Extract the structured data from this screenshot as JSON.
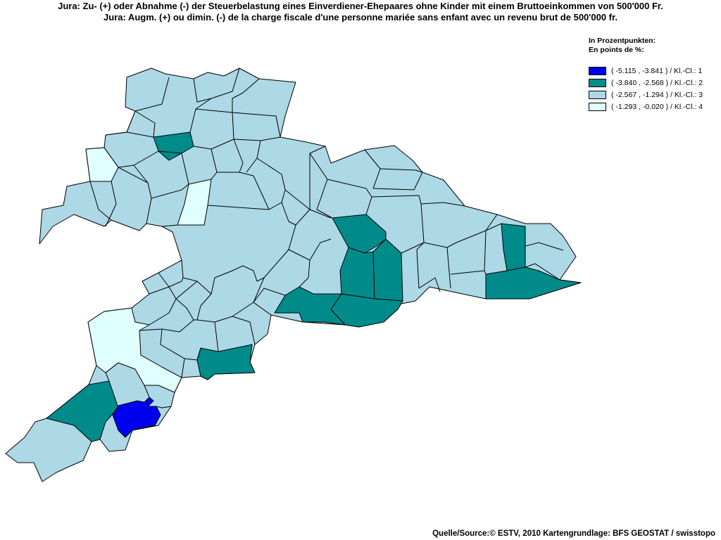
{
  "title": {
    "line1": "Jura: Zu- (+) oder Abnahme (-) der Steuerbelastung eines Einverdiener-Ehepaares ohne Kinder mit einem Bruttoeinkommen von 500'000 Fr.",
    "line2": "Jura: Augm. (+) ou dimin. (-) de la charge fiscale d'une personne mariée sans enfant avec un revenu brut de 500'000 fr."
  },
  "legend": {
    "heading1": "In Prozentpunkten:",
    "heading2": "En points de %:",
    "classes": [
      {
        "label": "( -5.115 , -3.841 ) / Kl.-Cl.: 1",
        "color": "#0000ee"
      },
      {
        "label": "( -3.840 , -2.568 ) / Kl.-Cl.: 2",
        "color": "#008b8b"
      },
      {
        "label": "( -2.567 , -1.294 ) / Kl.-Cl.: 3",
        "color": "#add8e6"
      },
      {
        "label": "( -1.293 , -0.020 ) / Kl.-Cl.: 4",
        "color": "#e0ffff"
      }
    ]
  },
  "source": "Quelle/Source:© ESTV, 2010 Kartengrundlage: BFS GEOSTAT / swisstopo"
}
